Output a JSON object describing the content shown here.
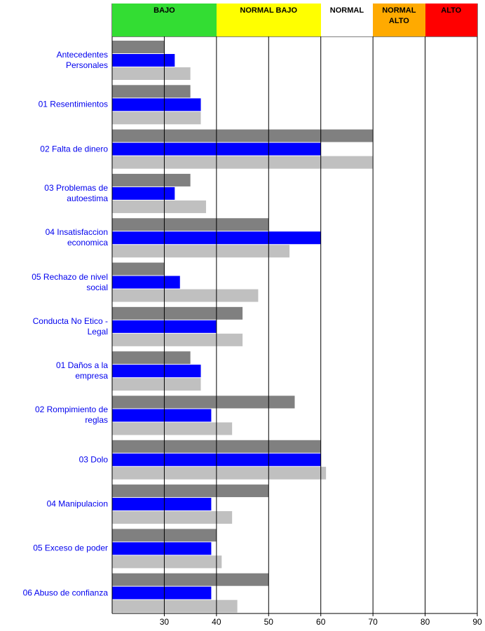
{
  "chart_data": {
    "type": "barh",
    "categories": [
      "Antecedentes Personales",
      "01 Resentimientos",
      "02 Falta de dinero",
      "03 Problemas de autoestima",
      "04 Insatisfaccion economica",
      "05 Rechazo de nivel social",
      "Conducta No Etico - Legal",
      "01 Daños a la empresa",
      "02 Rompimiento de reglas",
      "03 Dolo",
      "04 Manipulacion",
      "05 Exceso de poder",
      "06 Abuso de confianza"
    ],
    "series": [
      {
        "color": "#808080",
        "values": [
          30,
          35,
          70,
          35,
          50,
          30,
          45,
          35,
          55,
          60,
          50,
          40,
          50
        ]
      },
      {
        "color": "#0000ff",
        "values": [
          32,
          37,
          60,
          32,
          60,
          33,
          40,
          37,
          39,
          60,
          39,
          39,
          39
        ]
      },
      {
        "color": "#c0c0c0",
        "values": [
          35,
          37,
          70,
          38,
          54,
          48,
          45,
          37,
          43,
          61,
          43,
          41,
          44
        ]
      }
    ],
    "zones": [
      {
        "label": "BAJO",
        "from": 20,
        "to": 40,
        "color": "#33dd33"
      },
      {
        "label": "NORMAL BAJO",
        "from": 40,
        "to": 60,
        "color": "#ffff00"
      },
      {
        "label": "NORMAL",
        "from": 60,
        "to": 70,
        "color": "#ffffff"
      },
      {
        "label": "NORMAL ALTO",
        "from": 70,
        "to": 80,
        "color": "#ffaa00"
      },
      {
        "label": "ALTO",
        "from": 80,
        "to": 90,
        "color": "#ff0000"
      }
    ],
    "xlim": [
      20,
      90
    ],
    "xticks": [
      30,
      40,
      50,
      60,
      70,
      80,
      90
    ],
    "grid": true
  }
}
